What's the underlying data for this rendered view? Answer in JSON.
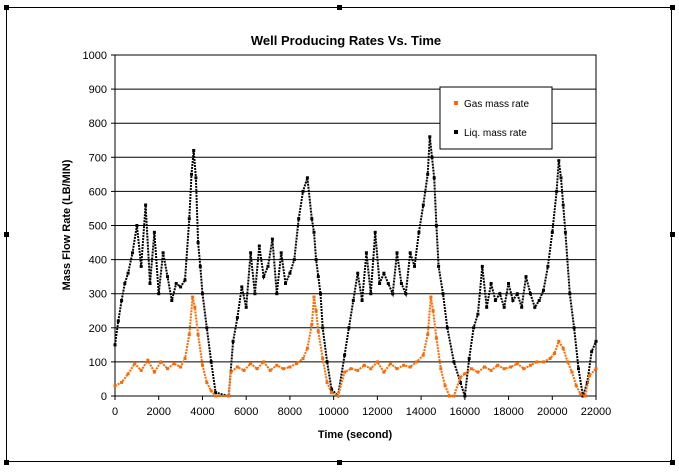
{
  "chart_data": {
    "type": "scatter",
    "title": "Well Producing Rates Vs. Time",
    "xlabel": "Time (second)",
    "ylabel": "Mass Flow Rate (LB/MIN)",
    "xlim": [
      0,
      22000
    ],
    "ylim": [
      0,
      1000
    ],
    "xticks": [
      "0",
      "2000",
      "4000",
      "6000",
      "8000",
      "10000",
      "12000",
      "14000",
      "16000",
      "18000",
      "20000",
      "22000"
    ],
    "yticks": [
      "0",
      "100",
      "200",
      "300",
      "400",
      "500",
      "600",
      "700",
      "800",
      "900",
      "1000"
    ],
    "grid": "horizontal",
    "legend_position": "top-right",
    "series": [
      {
        "name": "Gas mass rate",
        "color": "#ff6a00",
        "x": [
          0,
          300,
          600,
          900,
          1200,
          1500,
          1800,
          2100,
          2400,
          2700,
          3000,
          3200,
          3400,
          3550,
          3650,
          3800,
          4000,
          4200,
          4400,
          4600,
          5200,
          5300,
          5600,
          5900,
          6200,
          6500,
          6800,
          7100,
          7400,
          7700,
          8000,
          8300,
          8600,
          8800,
          9000,
          9100,
          9200,
          9300,
          9500,
          9700,
          9900,
          10200,
          10500,
          10800,
          11100,
          11400,
          11700,
          12000,
          12300,
          12600,
          12900,
          13200,
          13500,
          13800,
          14100,
          14300,
          14450,
          14550,
          14700,
          14900,
          15100,
          15300,
          15500,
          15800,
          16000,
          16300,
          16600,
          16900,
          17200,
          17500,
          17800,
          18100,
          18400,
          18700,
          19000,
          19300,
          19600,
          19900,
          20100,
          20300,
          20500,
          20700,
          20900,
          21100,
          21300,
          21500,
          21700,
          22000
        ],
        "y": [
          30,
          40,
          65,
          95,
          75,
          105,
          70,
          100,
          80,
          95,
          85,
          110,
          180,
          290,
          260,
          180,
          90,
          40,
          15,
          0,
          0,
          70,
          85,
          75,
          95,
          80,
          100,
          75,
          90,
          80,
          85,
          95,
          110,
          140,
          210,
          290,
          250,
          190,
          110,
          40,
          10,
          0,
          70,
          80,
          75,
          90,
          80,
          100,
          70,
          95,
          80,
          90,
          85,
          100,
          120,
          180,
          290,
          250,
          170,
          80,
          30,
          0,
          0,
          55,
          65,
          80,
          70,
          85,
          75,
          90,
          80,
          85,
          95,
          80,
          90,
          100,
          100,
          110,
          125,
          160,
          140,
          100,
          70,
          30,
          5,
          0,
          60,
          80
        ]
      },
      {
        "name": "Liq. mass rate",
        "color": "#000000",
        "x": [
          0,
          150,
          300,
          450,
          600,
          800,
          1000,
          1200,
          1400,
          1600,
          1800,
          2000,
          2200,
          2400,
          2600,
          2800,
          3000,
          3200,
          3400,
          3500,
          3600,
          3700,
          3800,
          3900,
          4000,
          4200,
          4400,
          4600,
          5200,
          5400,
          5600,
          5800,
          6000,
          6200,
          6400,
          6600,
          6800,
          7000,
          7200,
          7400,
          7600,
          7800,
          8000,
          8200,
          8400,
          8600,
          8800,
          9000,
          9100,
          9200,
          9300,
          9400,
          9500,
          9700,
          9900,
          10200,
          10500,
          10700,
          10900,
          11100,
          11300,
          11500,
          11700,
          11900,
          12100,
          12300,
          12500,
          12700,
          12900,
          13100,
          13300,
          13500,
          13700,
          13900,
          14100,
          14300,
          14400,
          14500,
          14600,
          14700,
          14800,
          15000,
          15200,
          15500,
          15800,
          16000,
          16200,
          16400,
          16600,
          16800,
          17000,
          17200,
          17400,
          17600,
          17800,
          18000,
          18200,
          18400,
          18600,
          18800,
          19000,
          19200,
          19400,
          19600,
          19800,
          20000,
          20200,
          20300,
          20400,
          20500,
          20600,
          20800,
          21000,
          21200,
          21400,
          21600,
          21800,
          22000
        ],
        "y": [
          150,
          220,
          280,
          330,
          360,
          420,
          500,
          380,
          560,
          330,
          480,
          300,
          420,
          350,
          280,
          330,
          320,
          340,
          520,
          650,
          720,
          640,
          450,
          380,
          300,
          200,
          100,
          10,
          0,
          160,
          230,
          320,
          260,
          420,
          300,
          440,
          350,
          380,
          460,
          300,
          420,
          330,
          360,
          400,
          520,
          600,
          640,
          520,
          480,
          400,
          350,
          300,
          200,
          100,
          20,
          0,
          120,
          200,
          280,
          360,
          280,
          420,
          300,
          480,
          330,
          360,
          330,
          300,
          420,
          330,
          300,
          420,
          380,
          480,
          560,
          650,
          760,
          700,
          640,
          500,
          380,
          300,
          200,
          100,
          40,
          0,
          110,
          200,
          240,
          380,
          260,
          330,
          280,
          300,
          260,
          330,
          280,
          300,
          260,
          350,
          300,
          260,
          280,
          310,
          380,
          480,
          600,
          690,
          640,
          560,
          480,
          300,
          200,
          80,
          0,
          40,
          130,
          160
        ]
      }
    ]
  }
}
